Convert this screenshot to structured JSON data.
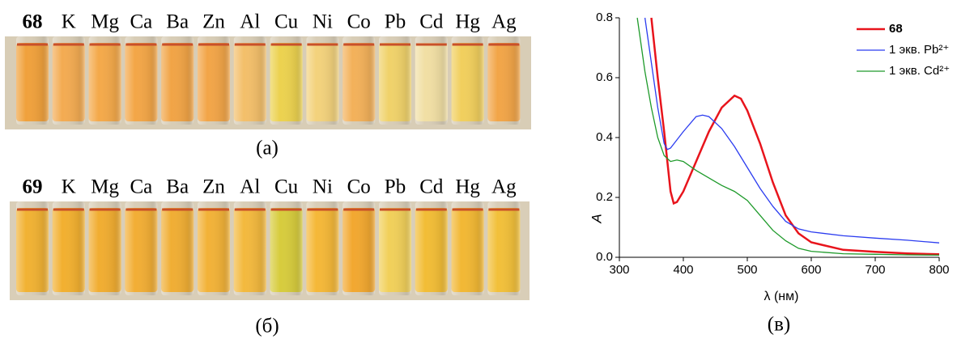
{
  "photos": [
    {
      "labels": [
        "68",
        "K",
        "Mg",
        "Ca",
        "Ba",
        "Zn",
        "Al",
        "Cu",
        "Ni",
        "Co",
        "Pb",
        "Cd",
        "Hg",
        "Ag"
      ],
      "caption": "(a)"
    },
    {
      "labels": [
        "69",
        "K",
        "Mg",
        "Ca",
        "Ba",
        "Zn",
        "Al",
        "Cu",
        "Ni",
        "Co",
        "Pb",
        "Cd",
        "Hg",
        "Ag"
      ],
      "caption": "(б)"
    }
  ],
  "chart_data": {
    "type": "line",
    "caption": "(в)",
    "x_label": "λ (нм)",
    "y_label": "A",
    "xlim": [
      300,
      800
    ],
    "xticks": [
      300,
      400,
      500,
      600,
      700,
      800
    ],
    "ylim": [
      0,
      0.8
    ],
    "yticks": [
      {
        "value": 0,
        "label": "0.0"
      },
      0.2,
      0.4,
      0.6,
      0.8
    ],
    "grid": false,
    "legend": "upper right",
    "series": [
      {
        "name": "68",
        "color": "#e8141c",
        "x": [
          350,
          360,
          370,
          380,
          385,
          390,
          400,
          420,
          440,
          460,
          480,
          490,
          500,
          520,
          540,
          560,
          580,
          600,
          650,
          700,
          750,
          800
        ],
        "values": [
          0.8,
          0.6,
          0.42,
          0.22,
          0.18,
          0.185,
          0.22,
          0.32,
          0.42,
          0.5,
          0.54,
          0.53,
          0.49,
          0.38,
          0.25,
          0.14,
          0.08,
          0.05,
          0.025,
          0.018,
          0.013,
          0.01
        ]
      },
      {
        "name": "1 экв. Pb²⁺",
        "color": "#2b3cf0",
        "x": [
          340,
          350,
          360,
          370,
          375,
          380,
          400,
          420,
          430,
          440,
          460,
          480,
          500,
          520,
          540,
          560,
          580,
          600,
          650,
          700,
          750,
          800
        ],
        "values": [
          0.8,
          0.65,
          0.5,
          0.38,
          0.36,
          0.365,
          0.42,
          0.47,
          0.475,
          0.47,
          0.43,
          0.37,
          0.3,
          0.23,
          0.17,
          0.12,
          0.095,
          0.085,
          0.072,
          0.064,
          0.057,
          0.048
        ]
      },
      {
        "name": "1 экв. Cd²⁺",
        "color": "#1e9a2a",
        "x": [
          328,
          340,
          350,
          360,
          370,
          380,
          390,
          400,
          420,
          440,
          460,
          480,
          500,
          520,
          540,
          560,
          580,
          600,
          650,
          700,
          750,
          800
        ],
        "values": [
          0.8,
          0.62,
          0.5,
          0.4,
          0.34,
          0.32,
          0.325,
          0.32,
          0.29,
          0.265,
          0.24,
          0.22,
          0.19,
          0.14,
          0.09,
          0.055,
          0.03,
          0.02,
          0.012,
          0.01,
          0.008,
          0.007
        ]
      }
    ]
  }
}
